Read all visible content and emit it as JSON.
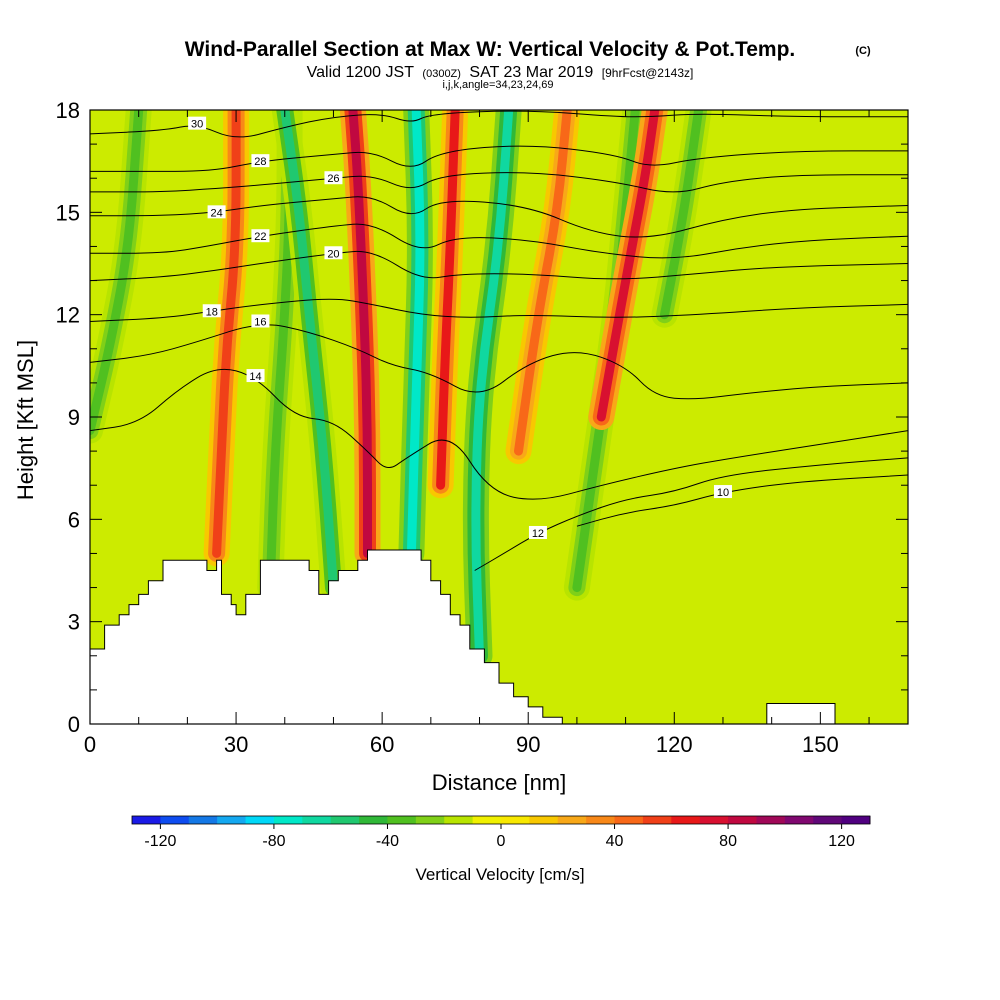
{
  "chart_data": {
    "type": "heatmap",
    "title": "Wind-Parallel Section at Max W: Vertical Velocity & Pot.Temp.",
    "title_mark": "(C)",
    "subtitle": {
      "valid": "Valid 1200 JST",
      "zulu": "(0300Z)",
      "date": "SAT 23 Mar 2019",
      "forecast": "[9hrFcst@2143z]"
    },
    "indices_line": "i,j,k,angle=34,23,24,69",
    "xlabel": "Distance [nm]",
    "ylabel": "Height [Kft MSL]",
    "xlim": [
      0,
      168
    ],
    "ylim": [
      0,
      18
    ],
    "x_ticks": [
      0,
      30,
      60,
      90,
      120,
      150
    ],
    "y_ticks": [
      0,
      3,
      6,
      9,
      12,
      15,
      18
    ],
    "colorbar": {
      "label": "Vertical Velocity [cm/s]",
      "min": -130,
      "max": 130,
      "step": 10,
      "ticks": [
        -120,
        -80,
        -40,
        0,
        40,
        80,
        120
      ],
      "colors": [
        "#1a1ae6",
        "#0e4cf0",
        "#1478e6",
        "#14a8f0",
        "#00d8f8",
        "#00e8c8",
        "#10d8a0",
        "#20c870",
        "#30b838",
        "#50c020",
        "#80d018",
        "#b8e400",
        "#f0f000",
        "#f8e800",
        "#f8c800",
        "#f8a818",
        "#f88818",
        "#f86818",
        "#f04018",
        "#e81818",
        "#d81030",
        "#c00840",
        "#a00858",
        "#800870",
        "#600878",
        "#500080"
      ],
      "grid": false
    },
    "theta_contours": [
      {
        "label": "30",
        "points": [
          [
            0,
            17.3
          ],
          [
            15,
            17.4
          ],
          [
            22,
            17.6
          ],
          [
            30,
            17.1
          ],
          [
            40,
            17.5
          ],
          [
            50,
            17.8
          ],
          [
            60,
            17.9
          ],
          [
            66,
            17.6
          ],
          [
            70,
            17.9
          ],
          [
            90,
            18
          ],
          [
            108,
            17.8
          ],
          [
            115,
            17.8
          ],
          [
            125,
            17.9
          ],
          [
            145,
            17.8
          ],
          [
            168,
            17.8
          ]
        ]
      },
      {
        "label": "28",
        "points": [
          [
            0,
            16.2
          ],
          [
            10,
            16.2
          ],
          [
            25,
            16.2
          ],
          [
            35,
            16.5
          ],
          [
            50,
            16.7
          ],
          [
            58,
            16.8
          ],
          [
            66,
            16.2
          ],
          [
            72,
            16.8
          ],
          [
            90,
            17
          ],
          [
            108,
            16.7
          ],
          [
            115,
            16.3
          ],
          [
            125,
            16.6
          ],
          [
            145,
            16.8
          ],
          [
            168,
            16.8
          ]
        ]
      },
      {
        "label": "26",
        "points": [
          [
            0,
            15.6
          ],
          [
            15,
            15.6
          ],
          [
            26,
            15.7
          ],
          [
            35,
            15.8
          ],
          [
            50,
            16
          ],
          [
            58,
            16.1
          ],
          [
            66,
            15.6
          ],
          [
            72,
            16.1
          ],
          [
            90,
            16.2
          ],
          [
            108,
            15.9
          ],
          [
            120,
            15.5
          ],
          [
            130,
            15.9
          ],
          [
            145,
            16.1
          ],
          [
            168,
            16.1
          ]
        ]
      },
      {
        "label": "24",
        "points": [
          [
            0,
            14.9
          ],
          [
            15,
            14.9
          ],
          [
            26,
            15
          ],
          [
            35,
            15.2
          ],
          [
            50,
            15.4
          ],
          [
            58,
            15.5
          ],
          [
            66,
            14.8
          ],
          [
            72,
            15.4
          ],
          [
            90,
            15.2
          ],
          [
            103,
            14.4
          ],
          [
            115,
            14.2
          ],
          [
            130,
            14.8
          ],
          [
            145,
            15.1
          ],
          [
            168,
            15.2
          ]
        ]
      },
      {
        "label": "22",
        "points": [
          [
            0,
            13.8
          ],
          [
            15,
            13.8
          ],
          [
            24,
            14
          ],
          [
            35,
            14.3
          ],
          [
            50,
            14.6
          ],
          [
            58,
            14.7
          ],
          [
            68,
            13.8
          ],
          [
            75,
            14.3
          ],
          [
            90,
            14.2
          ],
          [
            105,
            13.8
          ],
          [
            120,
            13.6
          ],
          [
            135,
            14
          ],
          [
            150,
            14.2
          ],
          [
            168,
            14.3
          ]
        ]
      },
      {
        "label": "20",
        "points": [
          [
            0,
            13
          ],
          [
            15,
            13.1
          ],
          [
            26,
            13.3
          ],
          [
            35,
            13.5
          ],
          [
            50,
            13.8
          ],
          [
            58,
            13.9
          ],
          [
            68,
            13
          ],
          [
            76,
            13.2
          ],
          [
            90,
            13.2
          ],
          [
            108,
            13
          ],
          [
            125,
            13.2
          ],
          [
            140,
            13.4
          ],
          [
            168,
            13.5
          ]
        ]
      },
      {
        "label": "18",
        "points": [
          [
            0,
            11.8
          ],
          [
            15,
            11.9
          ],
          [
            25,
            12.1
          ],
          [
            35,
            12.3
          ],
          [
            50,
            12.5
          ],
          [
            58,
            12.3
          ],
          [
            68,
            12
          ],
          [
            78,
            11.9
          ],
          [
            90,
            12
          ],
          [
            108,
            11.9
          ],
          [
            125,
            12
          ],
          [
            145,
            12.2
          ],
          [
            168,
            12.3
          ]
        ]
      },
      {
        "label": "16",
        "points": [
          [
            0,
            10.6
          ],
          [
            12,
            10.8
          ],
          [
            22,
            11.2
          ],
          [
            35,
            11.8
          ],
          [
            45,
            11.5
          ],
          [
            55,
            11
          ],
          [
            62,
            10.5
          ],
          [
            70,
            10.3
          ],
          [
            80,
            9.5
          ],
          [
            90,
            10.6
          ],
          [
            100,
            11
          ],
          [
            110,
            10.5
          ],
          [
            116,
            9.6
          ],
          [
            124,
            9.5
          ],
          [
            135,
            9.7
          ],
          [
            150,
            9.9
          ],
          [
            168,
            10
          ]
        ]
      },
      {
        "label": "14",
        "points": [
          [
            0,
            8.6
          ],
          [
            10,
            8.8
          ],
          [
            18,
            9.8
          ],
          [
            26,
            10.5
          ],
          [
            34,
            10.2
          ],
          [
            42,
            9
          ],
          [
            50,
            8.9
          ],
          [
            57,
            8
          ],
          [
            61,
            7.4
          ],
          [
            65,
            7.8
          ],
          [
            74,
            8.6
          ],
          [
            82,
            6.8
          ],
          [
            92,
            6.5
          ],
          [
            105,
            7
          ],
          [
            120,
            7.5
          ],
          [
            132,
            7.8
          ],
          [
            150,
            8.2
          ],
          [
            168,
            8.6
          ]
        ]
      },
      {
        "label": "12",
        "points": [
          [
            79,
            4.5
          ],
          [
            85,
            5
          ],
          [
            92,
            5.6
          ],
          [
            100,
            6.1
          ],
          [
            110,
            6.6
          ],
          [
            120,
            6.8
          ],
          [
            130,
            7.3
          ],
          [
            150,
            7.6
          ],
          [
            168,
            7.8
          ]
        ]
      },
      {
        "label": "10",
        "points": [
          [
            100,
            5.8
          ],
          [
            110,
            6.2
          ],
          [
            120,
            6.4
          ],
          [
            130,
            6.8
          ],
          [
            145,
            7.1
          ],
          [
            168,
            7.3
          ]
        ]
      }
    ],
    "updraft_bands": [
      {
        "sign": "down",
        "value": -40,
        "points": [
          [
            0,
            8.6
          ],
          [
            4,
            11
          ],
          [
            8,
            14
          ],
          [
            10,
            18
          ]
        ]
      },
      {
        "sign": "up",
        "value": 50,
        "points": [
          [
            26,
            5
          ],
          [
            27,
            8
          ],
          [
            28,
            11
          ],
          [
            30,
            14
          ],
          [
            30,
            18
          ]
        ]
      },
      {
        "sign": "down",
        "value": -40,
        "points": [
          [
            37,
            4
          ],
          [
            38,
            8
          ],
          [
            40,
            12
          ],
          [
            41,
            15
          ],
          [
            41,
            18
          ]
        ]
      },
      {
        "sign": "down",
        "value": -60,
        "points": [
          [
            50,
            4
          ],
          [
            48,
            8
          ],
          [
            45,
            12
          ],
          [
            43,
            15
          ],
          [
            40,
            18
          ]
        ]
      },
      {
        "sign": "up",
        "value": 80,
        "points": [
          [
            57,
            5
          ],
          [
            57,
            9
          ],
          [
            56,
            13
          ],
          [
            55,
            16
          ],
          [
            54,
            18
          ]
        ]
      },
      {
        "sign": "down",
        "value": -80,
        "points": [
          [
            66,
            5
          ],
          [
            67,
            10
          ],
          [
            68,
            14
          ],
          [
            67,
            18
          ]
        ]
      },
      {
        "sign": "up",
        "value": 60,
        "points": [
          [
            72,
            7
          ],
          [
            73,
            11
          ],
          [
            74,
            14
          ],
          [
            75,
            18
          ]
        ]
      },
      {
        "sign": "down",
        "value": -70,
        "points": [
          [
            80,
            2
          ],
          [
            79,
            6
          ],
          [
            80,
            10
          ],
          [
            84,
            14
          ],
          [
            86,
            18
          ]
        ]
      },
      {
        "sign": "up",
        "value": 40,
        "points": [
          [
            88,
            8
          ],
          [
            92,
            12
          ],
          [
            96,
            15
          ],
          [
            98,
            18
          ]
        ]
      },
      {
        "sign": "down",
        "value": -40,
        "points": [
          [
            100,
            4
          ],
          [
            104,
            8
          ],
          [
            108,
            12
          ],
          [
            110,
            15
          ],
          [
            112,
            18
          ]
        ]
      },
      {
        "sign": "up",
        "value": 70,
        "points": [
          [
            105,
            9
          ],
          [
            110,
            13
          ],
          [
            114,
            16
          ],
          [
            116,
            18
          ]
        ]
      },
      {
        "sign": "down",
        "value": -40,
        "points": [
          [
            118,
            12
          ],
          [
            122,
            15
          ],
          [
            125,
            18
          ]
        ]
      }
    ],
    "terrain": [
      [
        0,
        2.2
      ],
      [
        3,
        2.2
      ],
      [
        3,
        2.9
      ],
      [
        6,
        2.9
      ],
      [
        6,
        3.2
      ],
      [
        8,
        3.2
      ],
      [
        8,
        3.5
      ],
      [
        10,
        3.5
      ],
      [
        10,
        3.8
      ],
      [
        12,
        3.8
      ],
      [
        12,
        4.2
      ],
      [
        15,
        4.2
      ],
      [
        15,
        4.8
      ],
      [
        24,
        4.8
      ],
      [
        24,
        4.5
      ],
      [
        26,
        4.5
      ],
      [
        26,
        4.8
      ],
      [
        27,
        4.8
      ],
      [
        27,
        3.8
      ],
      [
        29,
        3.8
      ],
      [
        29,
        3.5
      ],
      [
        30,
        3.5
      ],
      [
        30,
        3.2
      ],
      [
        32,
        3.2
      ],
      [
        32,
        3.8
      ],
      [
        35,
        3.8
      ],
      [
        35,
        4.8
      ],
      [
        45,
        4.8
      ],
      [
        45,
        4.5
      ],
      [
        47,
        4.5
      ],
      [
        47,
        3.8
      ],
      [
        49,
        3.8
      ],
      [
        49,
        4.2
      ],
      [
        51,
        4.2
      ],
      [
        51,
        4.5
      ],
      [
        55,
        4.5
      ],
      [
        55,
        4.8
      ],
      [
        57,
        4.8
      ],
      [
        57,
        5.1
      ],
      [
        68,
        5.1
      ],
      [
        68,
        4.8
      ],
      [
        70,
        4.8
      ],
      [
        70,
        4.2
      ],
      [
        72,
        4.2
      ],
      [
        72,
        3.8
      ],
      [
        74,
        3.8
      ],
      [
        74,
        3.2
      ],
      [
        76,
        3.2
      ],
      [
        76,
        2.9
      ],
      [
        78,
        2.9
      ],
      [
        78,
        2.2
      ],
      [
        81,
        2.2
      ],
      [
        81,
        1.8
      ],
      [
        84,
        1.8
      ],
      [
        84,
        1.2
      ],
      [
        87,
        1.2
      ],
      [
        87,
        0.8
      ],
      [
        90,
        0.8
      ],
      [
        90,
        0.5
      ],
      [
        93,
        0.5
      ],
      [
        93,
        0.2
      ],
      [
        97,
        0.2
      ],
      [
        97,
        0
      ],
      [
        139,
        0
      ],
      [
        139,
        0.6
      ],
      [
        153,
        0.6
      ],
      [
        153,
        0
      ],
      [
        168,
        0
      ]
    ]
  }
}
